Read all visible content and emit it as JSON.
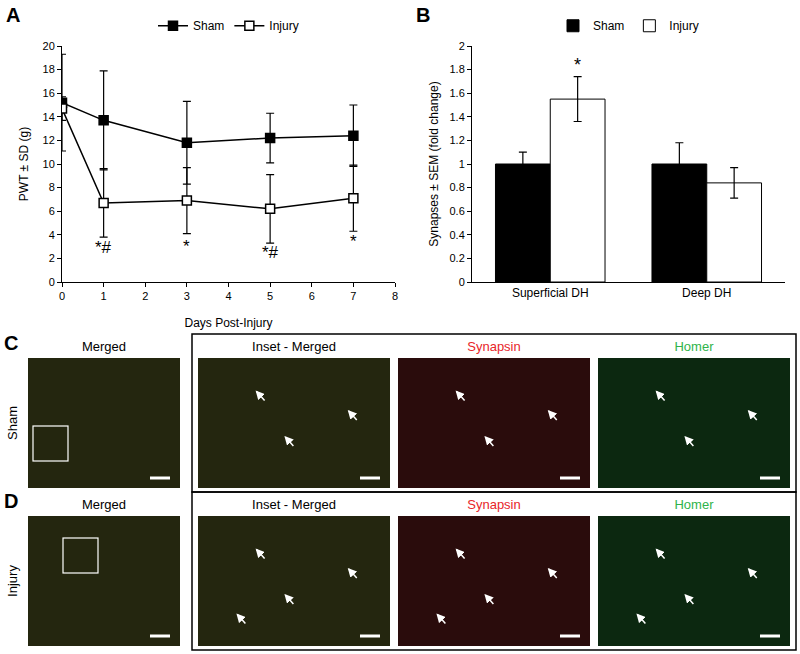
{
  "panels": [
    "A",
    "B",
    "C",
    "D"
  ],
  "chart_data": [
    {
      "type": "line",
      "x_label": "Days Post-Injury",
      "y_label": "PWT ± SD (g)",
      "x": [
        0,
        1,
        3,
        5,
        7
      ],
      "series": [
        {
          "name": "Sham",
          "color": "#000000",
          "marker": "square",
          "line_style": "solid",
          "values": [
            15.2,
            13.7,
            11.8,
            12.2,
            12.4
          ],
          "error": [
            4.1,
            4.2,
            3.5,
            2.1,
            2.6
          ]
        },
        {
          "name": "Injury",
          "color": "#ffffff",
          "marker": "square",
          "line_style": "solid",
          "values": [
            14.7,
            6.7,
            6.9,
            6.2,
            7.1
          ],
          "error": [
            1.0,
            2.9,
            2.8,
            2.9,
            2.8
          ]
        }
      ],
      "xlim": [
        0,
        8
      ],
      "xticks": [
        0,
        1,
        2,
        3,
        4,
        5,
        6,
        7,
        8
      ],
      "ylim": [
        0,
        20
      ],
      "yticks": [
        0,
        2,
        4,
        6,
        8,
        10,
        12,
        14,
        16,
        18,
        20
      ],
      "grid": false,
      "legend": "top",
      "annotations": [
        {
          "x": 1,
          "y": 2.9,
          "text": "*#"
        },
        {
          "x": 3,
          "y": 3.0,
          "text": "*"
        },
        {
          "x": 5,
          "y": 2.5,
          "text": "*#"
        },
        {
          "x": 7,
          "y": 3.4,
          "text": "*"
        }
      ]
    },
    {
      "type": "bar",
      "y_label": "Synapses ± SEM (fold change)",
      "categories": [
        "Superficial DH",
        "Deep DH"
      ],
      "series": [
        {
          "name": "Sham",
          "color": "#000000",
          "values": [
            1.0,
            1.0
          ],
          "error": [
            0.1,
            0.18
          ]
        },
        {
          "name": "Injury",
          "color": "#ffffff",
          "values": [
            1.55,
            0.84
          ],
          "error": [
            0.19,
            0.13
          ]
        }
      ],
      "ylim": [
        0,
        2
      ],
      "yticks": [
        0,
        0.2,
        0.4,
        0.6,
        0.8,
        1,
        1.2,
        1.4,
        1.6,
        1.8,
        2
      ],
      "grid": false,
      "legend": "top",
      "annotations": [
        {
          "category": "Superficial DH",
          "series": "Injury",
          "y": 1.84,
          "text": "*"
        }
      ]
    }
  ],
  "images": {
    "columns": [
      {
        "text": "Merged"
      },
      {
        "text": "Inset - Merged"
      },
      {
        "text": "Synapsin",
        "color": "#e8262a"
      },
      {
        "text": "Homer",
        "color": "#2fb34a"
      }
    ],
    "rows": [
      "Sham",
      "Injury"
    ]
  }
}
